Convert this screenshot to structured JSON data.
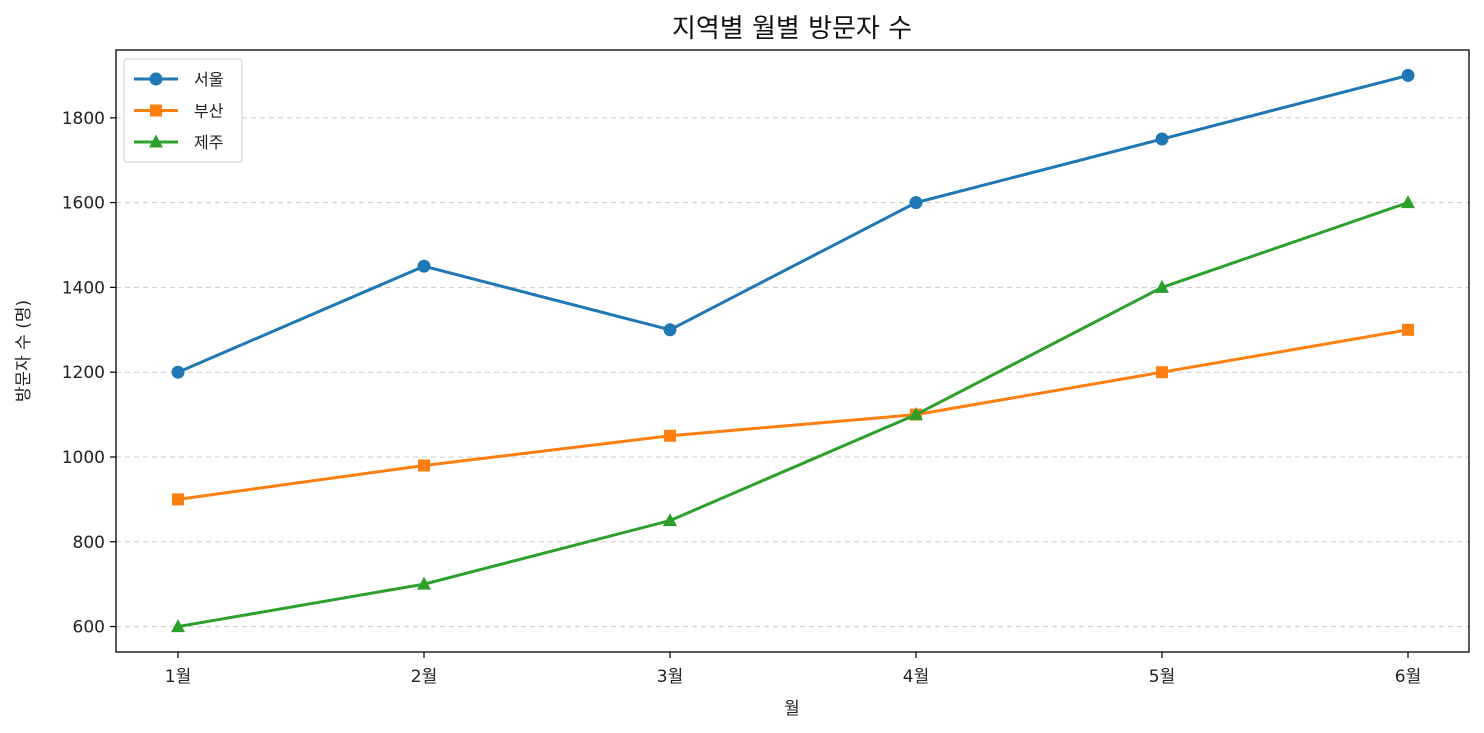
{
  "chart_data": {
    "type": "line",
    "title": "지역별 월별 방문자 수",
    "xlabel": "월",
    "ylabel": "방문자 수 (명)",
    "categories": [
      "1월",
      "2월",
      "3월",
      "4월",
      "5월",
      "6월"
    ],
    "ylim": [
      540,
      1960
    ],
    "yticks": [
      600,
      800,
      1000,
      1200,
      1400,
      1600,
      1800
    ],
    "grid": "y-dashed",
    "legend_position": "top-left",
    "series": [
      {
        "name": "서울",
        "marker": "circle",
        "color": "#1f77b4",
        "values": [
          1200,
          1450,
          1300,
          1600,
          1750,
          1900
        ]
      },
      {
        "name": "부산",
        "marker": "square",
        "color": "#ff7f0e",
        "values": [
          900,
          980,
          1050,
          1100,
          1200,
          1300
        ]
      },
      {
        "name": "제주",
        "marker": "triangle",
        "color": "#2ca02c",
        "values": [
          600,
          700,
          850,
          1100,
          1400,
          1600
        ]
      }
    ]
  }
}
